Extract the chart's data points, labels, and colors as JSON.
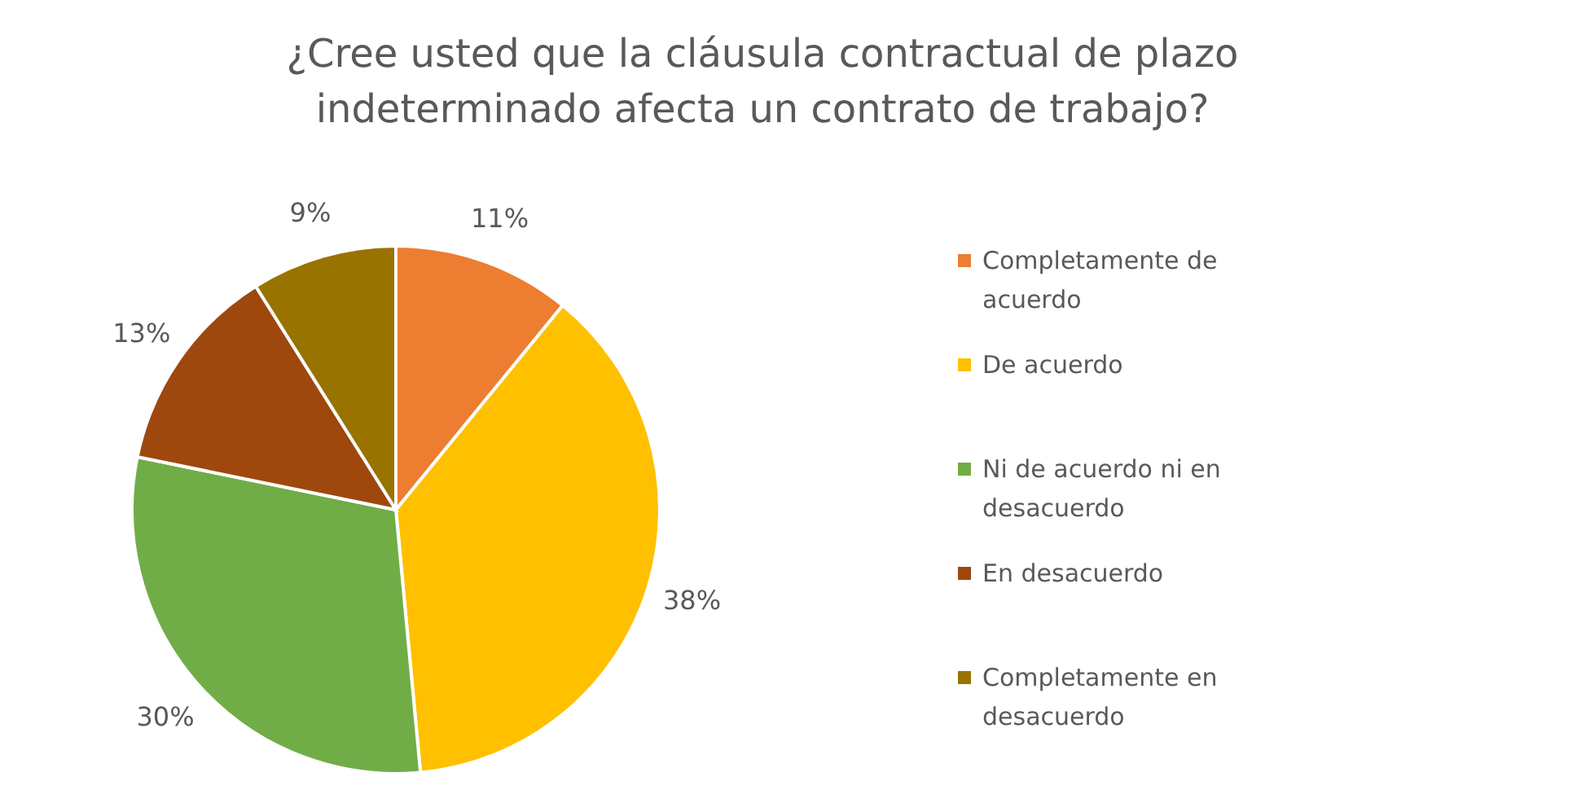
{
  "chart_data": {
    "type": "pie",
    "title": "¿Cree usted que la cláusula contractual de plazo indeterminado afecta un contrato de trabajo?",
    "categories": [
      "Completamente de acuerdo",
      "De acuerdo",
      "Ni de acuerdo ni en desacuerdo",
      "En desacuerdo",
      "Completamente en desacuerdo"
    ],
    "values": [
      11,
      38,
      30,
      13,
      9
    ],
    "colors": [
      "#ed7d31",
      "#ffc000",
      "#70ad47",
      "#9e480e",
      "#997300"
    ],
    "value_labels": [
      "11%",
      "38%",
      "30%",
      "13%",
      "9%"
    ],
    "legend": "right"
  }
}
